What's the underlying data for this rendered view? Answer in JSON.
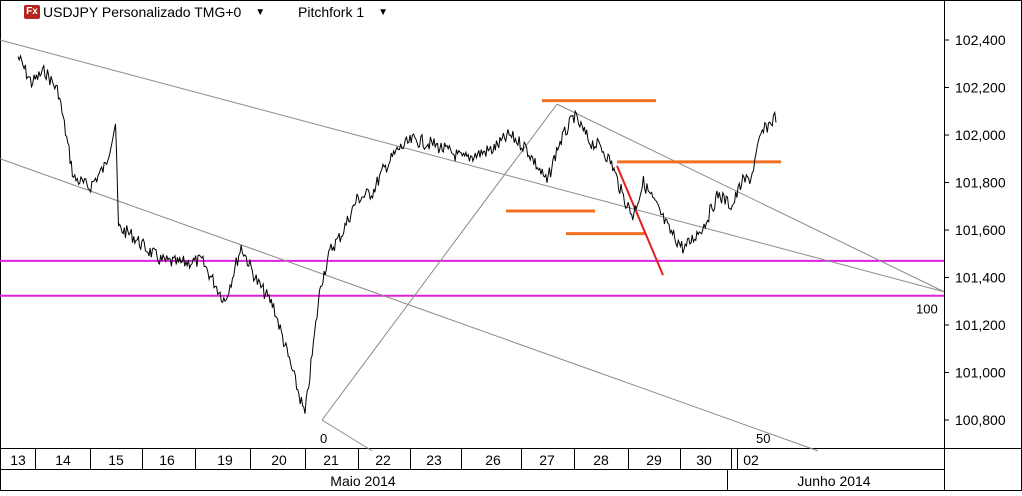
{
  "header": {
    "app_icon": "Fx",
    "symbol_label": "USDJPY Personalizado TMG+0",
    "study_label": "Pitchfork 1",
    "dropdown_icon": "caret-down-icon"
  },
  "chart_data": {
    "type": "line",
    "title": "USDJPY Personalizado TMG+0",
    "ylim": [
      100.63,
      102.56
    ],
    "y_ticks": [
      "102,400",
      "102,200",
      "102,000",
      "101,800",
      "101,600",
      "101,400",
      "101,200",
      "101,000",
      "100,800"
    ],
    "x_day_labels": [
      "13",
      "14",
      "15",
      "16",
      "19",
      "20",
      "21",
      "22",
      "23",
      "26",
      "27",
      "28",
      "29",
      "30",
      "02"
    ],
    "x_month_labels": [
      "Maio 2014",
      "Junho 2014"
    ],
    "series": [
      {
        "x": [
          0,
          0.3,
          0.6,
          0.9,
          1.2,
          1.5,
          1.8,
          1.99,
          2.05,
          2.3,
          2.6,
          2.9,
          3.2,
          3.6,
          4.0,
          4.3,
          4.6,
          4.9,
          5.0,
          5.2,
          5.5,
          5.8,
          6.0,
          6.2,
          6.5,
          6.8,
          7.0,
          7.3,
          7.6,
          8.0,
          8.5,
          9.0,
          9.3,
          9.6,
          10.0,
          10.2,
          10.5,
          10.8,
          11.0,
          11.2,
          11.4,
          11.6,
          11.8,
          12.0,
          12.3,
          12.6,
          13.0,
          13.3,
          13.6,
          13.8,
          14.0,
          14.2,
          14.3,
          14.5
        ],
        "values": [
          102.33,
          102.22,
          102.27,
          102.18,
          101.82,
          101.78,
          101.87,
          102.05,
          101.61,
          101.58,
          101.52,
          101.47,
          101.46,
          101.47,
          101.3,
          101.53,
          101.38,
          101.28,
          101.2,
          101.05,
          100.82,
          101.37,
          101.52,
          101.58,
          101.73,
          101.76,
          101.85,
          101.94,
          101.98,
          101.96,
          101.9,
          101.94,
          102.0,
          101.95,
          101.8,
          101.95,
          102.08,
          101.97,
          101.95,
          101.88,
          101.75,
          101.66,
          101.8,
          101.72,
          101.6,
          101.52,
          101.62,
          101.75,
          101.7,
          101.8,
          101.82,
          102.0,
          102.03,
          102.08
        ]
      }
    ],
    "drawings": {
      "horizontal_levels": [
        101.47,
        101.323
      ],
      "pitchfork_label_100": "100",
      "pitchfork_label_0": "0",
      "pitchfork_label_50": "50"
    }
  }
}
